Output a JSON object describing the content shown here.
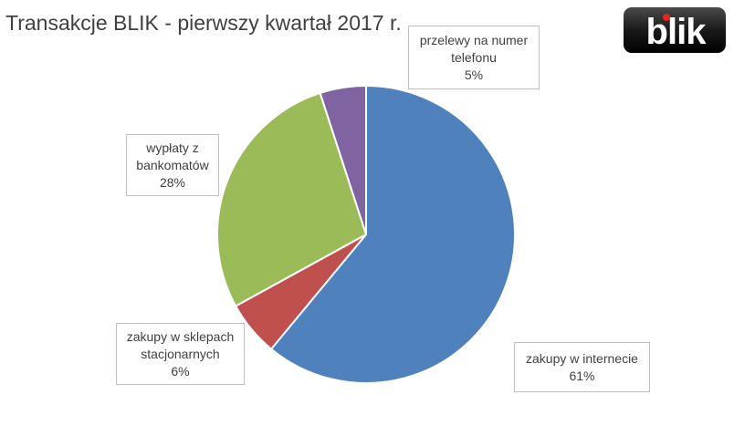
{
  "chart_data": {
    "type": "pie",
    "title": "Transakcje BLIK - pierwszy kwartał 2017 r.",
    "start_angle_deg": 0,
    "direction": "clockwise",
    "slices": [
      {
        "name": "zakupy w internecie",
        "name_lines": [
          "zakupy w internecie"
        ],
        "value": 61,
        "label": "61%",
        "color": "#4f81bd"
      },
      {
        "name": "zakupy w sklepach stacjonarnych",
        "name_lines": [
          "zakupy w sklepach",
          "stacjonarnych"
        ],
        "value": 6,
        "label": "6%",
        "color": "#c0504d"
      },
      {
        "name": "wypłaty z bankomatów",
        "name_lines": [
          "wypłaty z",
          "bankomatów"
        ],
        "value": 28,
        "label": "28%",
        "color": "#9bbb59"
      },
      {
        "name": "przelewy na numer telefonu",
        "name_lines": [
          "przelewy na numer",
          "telefonu"
        ],
        "value": 5,
        "label": "5%",
        "color": "#8064a2"
      }
    ]
  },
  "logo": {
    "text": "blik",
    "background": "#1a1a1a",
    "dot_color": "#e3261f"
  }
}
